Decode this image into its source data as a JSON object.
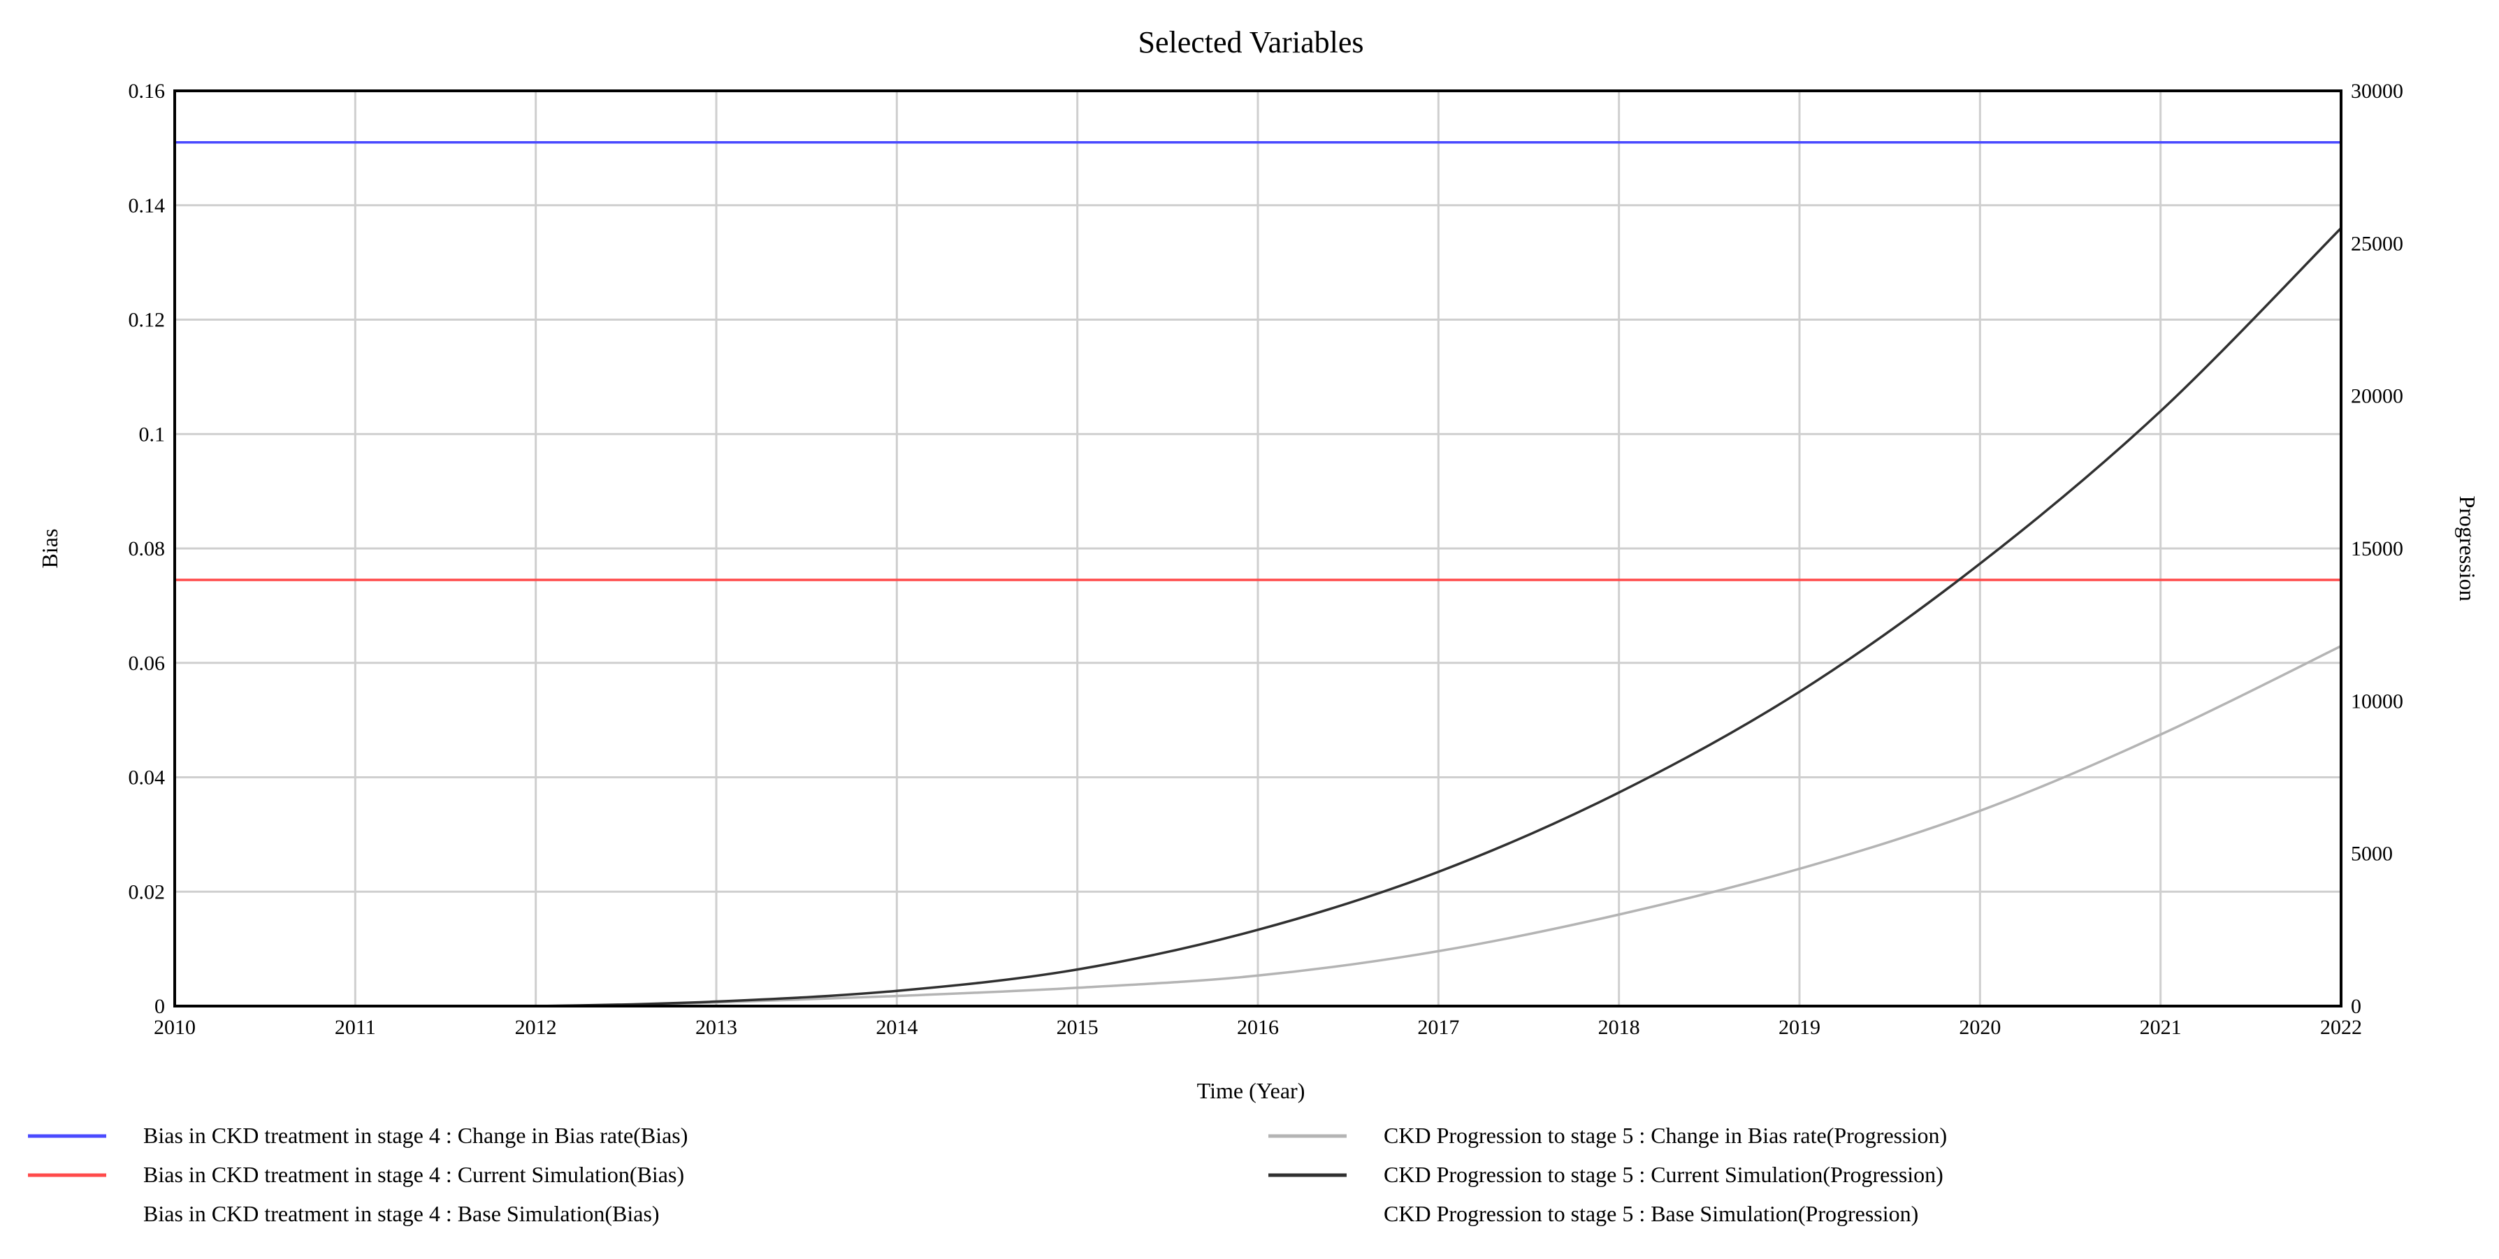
{
  "chart_data": {
    "type": "line",
    "title": "Selected Variables",
    "xlabel": "Time (Year)",
    "ylabel_left": "Bias",
    "ylabel_right": "Progression",
    "x_ticks": [
      "2010",
      "2011",
      "2012",
      "2013",
      "2014",
      "2015",
      "2016",
      "2017",
      "2018",
      "2019",
      "2020",
      "2021",
      "2022"
    ],
    "y_left_ticks": [
      "0",
      "0.02",
      "0.04",
      "0.06",
      "0.08",
      "0.1",
      "0.12",
      "0.14",
      "0.16"
    ],
    "y_right_ticks": [
      "0",
      "5000",
      "10000",
      "15000",
      "20000",
      "25000",
      "30000"
    ],
    "xlim": [
      2010,
      2022
    ],
    "ylim_left": [
      0,
      0.16
    ],
    "ylim_right": [
      0,
      30000
    ],
    "grid": true,
    "legend_position": "bottom",
    "series": [
      {
        "name": "Bias in CKD treatment in stage 4 : Change in Bias rate(Bias)",
        "axis": "left",
        "color": "#4a4aff",
        "x": [
          2010,
          2022
        ],
        "y": [
          0.151,
          0.151
        ]
      },
      {
        "name": "Bias in CKD treatment in stage 4 : Current Simulation(Bias)",
        "axis": "left",
        "color": "#ff4a4a",
        "x": [
          2010,
          2022
        ],
        "y": [
          0.0745,
          0.0745
        ]
      },
      {
        "name": "Bias in CKD treatment in stage 4 : Base Simulation(Bias)",
        "axis": "left",
        "color": "",
        "x": [],
        "y": []
      },
      {
        "name": "CKD Progression to stage 5 : Change in Bias rate(Progression)",
        "axis": "right",
        "color": "#b4b4b4",
        "x": [
          2010,
          2011,
          2012,
          2013,
          2014,
          2015,
          2016,
          2017,
          2018,
          2019,
          2020,
          2021,
          2022
        ],
        "y": [
          0,
          0,
          0,
          120,
          330,
          600,
          1000,
          1800,
          3000,
          4500,
          6400,
          8900,
          11800
        ]
      },
      {
        "name": "CKD Progression to stage 5 : Current Simulation(Progression)",
        "axis": "right",
        "color": "#303030",
        "x": [
          2010,
          2011,
          2012,
          2013,
          2014,
          2015,
          2016,
          2017,
          2018,
          2019,
          2020,
          2021,
          2022
        ],
        "y": [
          0,
          0,
          0,
          150,
          500,
          1200,
          2500,
          4400,
          7000,
          10300,
          14500,
          19500,
          25500
        ]
      },
      {
        "name": "CKD Progression to stage 5 : Base Simulation(Progression)",
        "axis": "right",
        "color": "",
        "x": [],
        "y": []
      }
    ]
  }
}
